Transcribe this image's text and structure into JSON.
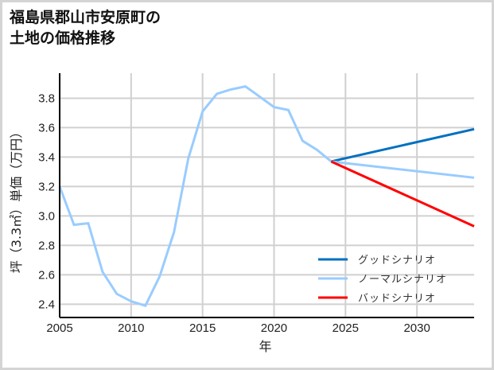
{
  "title": {
    "line1": "福島県郡山市安原町の",
    "line2": "土地の価格推移"
  },
  "chart_data": {
    "type": "line",
    "title": "福島県郡山市安原町の土地の価格推移",
    "xlabel": "年",
    "ylabel": "坪（3.3㎡）単価（万円）",
    "xlim": [
      2005,
      2034
    ],
    "ylim": [
      2.31,
      3.97
    ],
    "xticks": [
      2005,
      2010,
      2015,
      2020,
      2025,
      2030
    ],
    "yticks": [
      2.4,
      2.6,
      2.8,
      3.0,
      3.2,
      3.4,
      3.6,
      3.8
    ],
    "grid": true,
    "legend_position": "lower right",
    "historical": {
      "name": "ノーマルシナリオ",
      "x": [
        2005,
        2006,
        2007,
        2008,
        2009,
        2010,
        2011,
        2012,
        2013,
        2014,
        2015,
        2016,
        2017,
        2018,
        2019,
        2020,
        2021,
        2022,
        2023,
        2024
      ],
      "y": [
        3.2,
        2.94,
        2.95,
        2.62,
        2.47,
        2.42,
        2.39,
        2.59,
        2.89,
        3.39,
        3.71,
        3.83,
        3.86,
        3.88,
        3.81,
        3.74,
        3.72,
        3.51,
        3.45,
        3.37
      ]
    },
    "series": [
      {
        "name": "グッドシナリオ",
        "color": "#0070c0",
        "x": [
          2024,
          2034
        ],
        "y": [
          3.37,
          3.59
        ]
      },
      {
        "name": "ノーマルシナリオ",
        "color": "#99ccff",
        "x": [
          2024,
          2034
        ],
        "y": [
          3.37,
          3.26
        ]
      },
      {
        "name": "バッドシナリオ",
        "color": "#ff0000",
        "x": [
          2024,
          2034
        ],
        "y": [
          3.37,
          2.93
        ]
      }
    ]
  },
  "legend": [
    {
      "label": "グッドシナリオ",
      "color": "#0070c0"
    },
    {
      "label": "ノーマルシナリオ",
      "color": "#99ccff"
    },
    {
      "label": "バッドシナリオ",
      "color": "#ff0000"
    }
  ]
}
